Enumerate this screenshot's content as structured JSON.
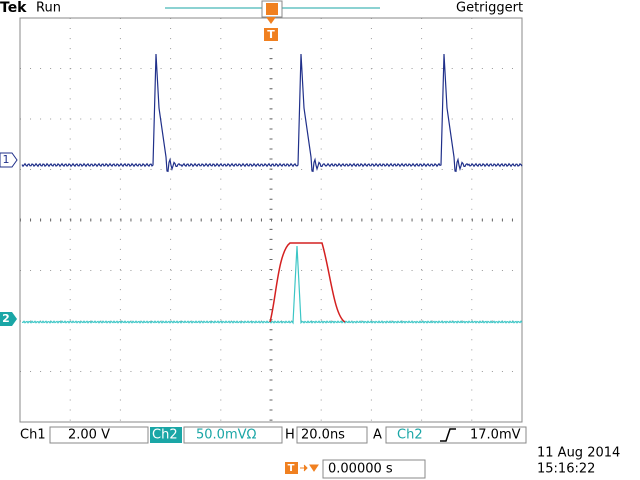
{
  "header": {
    "brand": "Tek",
    "state": "Run",
    "trigger_status": "Getriggert",
    "trigger_marker": "T"
  },
  "channels": {
    "ch1_marker": "1",
    "ch2_marker": "2"
  },
  "status_bar": {
    "ch1_label": "Ch1",
    "ch1_scale": "2.00 V",
    "ch2_label": "Ch2",
    "ch2_scale": "50.0mVΩ",
    "h_label": "H",
    "h_scale": "20.0ns",
    "trig_mode": "A",
    "trig_source": "Ch2",
    "trig_level": "17.0mV"
  },
  "footer": {
    "trigger_icon": "T",
    "position": "0.00000 s",
    "date": "11 Aug 2014",
    "time": "15:16:22"
  }
}
